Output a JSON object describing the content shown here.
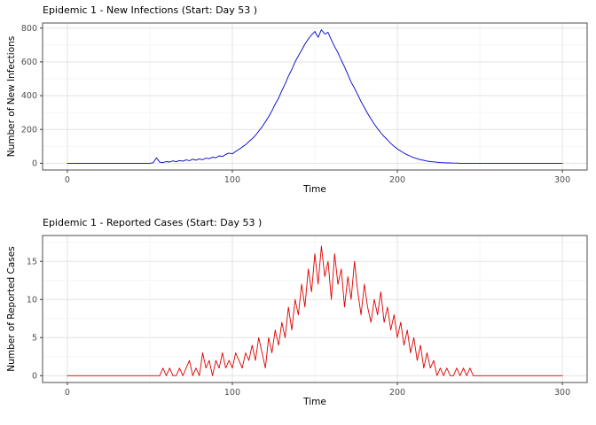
{
  "style": {
    "background": "#ffffff",
    "grid_major": "#e3e3e3",
    "grid_minor": "#f2f2f2",
    "panel_border": "#4d4d4d",
    "tick": "#333333",
    "tick_label": "#4d4d4d"
  },
  "chart_data": [
    {
      "type": "line",
      "title": "Epidemic 1 - New Infections (Start: Day 53 )",
      "xlabel": "Time",
      "ylabel": "Number of New Infections",
      "color": "#0000cc",
      "xlim": [
        -15,
        315
      ],
      "ylim": [
        -40,
        830
      ],
      "x_ticks": [
        0,
        100,
        200,
        300
      ],
      "y_ticks": [
        0,
        200,
        400,
        600,
        800
      ],
      "x_minor": [
        50,
        150,
        250
      ],
      "y_minor": [
        100,
        300,
        500,
        700
      ],
      "x_start": 0,
      "x_step": 2,
      "values": [
        0,
        0,
        0,
        0,
        0,
        0,
        0,
        0,
        0,
        0,
        0,
        0,
        0,
        0,
        0,
        0,
        0,
        0,
        0,
        0,
        0,
        0,
        0,
        0,
        0,
        0,
        3,
        32,
        6,
        4,
        10,
        7,
        14,
        9,
        16,
        12,
        20,
        15,
        24,
        18,
        26,
        21,
        30,
        27,
        36,
        32,
        44,
        40,
        52,
        60,
        56,
        70,
        82,
        96,
        110,
        128,
        145,
        165,
        190,
        215,
        245,
        275,
        310,
        350,
        385,
        430,
        470,
        515,
        555,
        600,
        635,
        670,
        705,
        735,
        760,
        780,
        745,
        790,
        765,
        775,
        730,
        690,
        655,
        610,
        570,
        525,
        480,
        445,
        405,
        365,
        330,
        295,
        262,
        232,
        205,
        180,
        158,
        138,
        118,
        100,
        85,
        72,
        60,
        50,
        41,
        33,
        27,
        21,
        17,
        13,
        10,
        8,
        6,
        4,
        3,
        2,
        2,
        1,
        1,
        0,
        0,
        0,
        0,
        0,
        0,
        0,
        0,
        0,
        0,
        0,
        0,
        0,
        0,
        0,
        0,
        0,
        0,
        0,
        0,
        0,
        0,
        0,
        0,
        0,
        0,
        0,
        0,
        0,
        0,
        0,
        0
      ]
    },
    {
      "type": "line",
      "title": "Epidemic 1 - Reported Cases (Start: Day 53 )",
      "xlabel": "Time",
      "ylabel": "Number of Reported Cases",
      "color": "#dd0000",
      "xlim": [
        -15,
        315
      ],
      "ylim": [
        -0.9,
        18.4
      ],
      "x_ticks": [
        0,
        100,
        200,
        300
      ],
      "y_ticks": [
        0,
        5,
        10,
        15
      ],
      "x_minor": [
        50,
        150,
        250
      ],
      "y_minor": [
        2.5,
        7.5,
        12.5,
        17.5
      ],
      "x_start": 0,
      "x_step": 2,
      "values": [
        0,
        0,
        0,
        0,
        0,
        0,
        0,
        0,
        0,
        0,
        0,
        0,
        0,
        0,
        0,
        0,
        0,
        0,
        0,
        0,
        0,
        0,
        0,
        0,
        0,
        0,
        0,
        0,
        0,
        1,
        0,
        1,
        0,
        0,
        1,
        0,
        1,
        2,
        0,
        1,
        0,
        3,
        1,
        2,
        0,
        2,
        1,
        3,
        1,
        2,
        1,
        3,
        2,
        1,
        3,
        2,
        4,
        2,
        5,
        3,
        1,
        5,
        3,
        6,
        4,
        7,
        5,
        9,
        6,
        10,
        8,
        12,
        9,
        14,
        11,
        16,
        12,
        17,
        13,
        15,
        10,
        16,
        12,
        14,
        9,
        13,
        10,
        15,
        11,
        8,
        12,
        9,
        7,
        10,
        8,
        11,
        7,
        9,
        6,
        8,
        5,
        7,
        4,
        6,
        3,
        5,
        2,
        4,
        1,
        3,
        1,
        2,
        0,
        1,
        0,
        1,
        0,
        0,
        1,
        0,
        1,
        0,
        1,
        0,
        0,
        0,
        0,
        0,
        0,
        0,
        0,
        0,
        0,
        0,
        0,
        0,
        0,
        0,
        0,
        0,
        0,
        0,
        0,
        0,
        0,
        0,
        0,
        0,
        0,
        0,
        0
      ]
    }
  ]
}
